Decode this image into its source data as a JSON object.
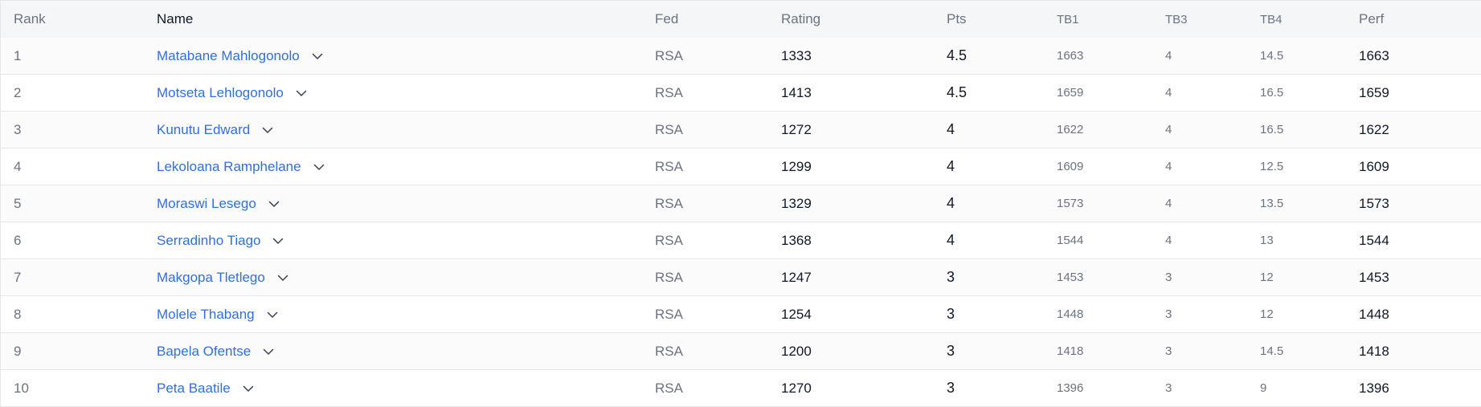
{
  "table": {
    "headers": {
      "rank": "Rank",
      "name": "Name",
      "fed": "Fed",
      "rating": "Rating",
      "pts": "Pts",
      "tb1": "TB1",
      "tb3": "TB3",
      "tb4": "TB4",
      "perf": "Perf"
    },
    "rows": [
      {
        "rank": "1",
        "name": "Matabane Mahlogonolo",
        "fed": "RSA",
        "rating": "1333",
        "pts": "4.5",
        "tb1": "1663",
        "tb3": "4",
        "tb4": "14.5",
        "perf": "1663"
      },
      {
        "rank": "2",
        "name": "Motseta Lehlogonolo",
        "fed": "RSA",
        "rating": "1413",
        "pts": "4.5",
        "tb1": "1659",
        "tb3": "4",
        "tb4": "16.5",
        "perf": "1659"
      },
      {
        "rank": "3",
        "name": "Kunutu Edward",
        "fed": "RSA",
        "rating": "1272",
        "pts": "4",
        "tb1": "1622",
        "tb3": "4",
        "tb4": "16.5",
        "perf": "1622"
      },
      {
        "rank": "4",
        "name": "Lekoloana Ramphelane",
        "fed": "RSA",
        "rating": "1299",
        "pts": "4",
        "tb1": "1609",
        "tb3": "4",
        "tb4": "12.5",
        "perf": "1609"
      },
      {
        "rank": "5",
        "name": "Moraswi Lesego",
        "fed": "RSA",
        "rating": "1329",
        "pts": "4",
        "tb1": "1573",
        "tb3": "4",
        "tb4": "13.5",
        "perf": "1573"
      },
      {
        "rank": "6",
        "name": "Serradinho Tiago",
        "fed": "RSA",
        "rating": "1368",
        "pts": "4",
        "tb1": "1544",
        "tb3": "4",
        "tb4": "13",
        "perf": "1544"
      },
      {
        "rank": "7",
        "name": "Makgopa Tletlego",
        "fed": "RSA",
        "rating": "1247",
        "pts": "3",
        "tb1": "1453",
        "tb3": "3",
        "tb4": "12",
        "perf": "1453"
      },
      {
        "rank": "8",
        "name": "Molele Thabang",
        "fed": "RSA",
        "rating": "1254",
        "pts": "3",
        "tb1": "1448",
        "tb3": "3",
        "tb4": "12",
        "perf": "1448"
      },
      {
        "rank": "9",
        "name": "Bapela Ofentse",
        "fed": "RSA",
        "rating": "1200",
        "pts": "3",
        "tb1": "1418",
        "tb3": "3",
        "tb4": "14.5",
        "perf": "1418"
      },
      {
        "rank": "10",
        "name": "Peta Baatile",
        "fed": "RSA",
        "rating": "1270",
        "pts": "3",
        "tb1": "1396",
        "tb3": "3",
        "tb4": "9",
        "perf": "1396"
      }
    ]
  },
  "icons": {
    "expand": "chevron-down-icon"
  },
  "colors": {
    "link": "#2f6fdf",
    "header_bg": "#f5f6f8",
    "border": "#e5e7eb",
    "muted_text": "#6b7280"
  }
}
